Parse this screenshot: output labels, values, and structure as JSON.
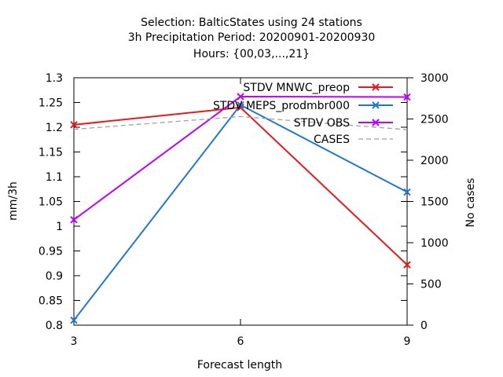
{
  "chart_data": {
    "type": "line",
    "title_lines": [
      "Selection: BalticStates using     24 stations",
      "3h Precipitation    Period: 20200901-20200930",
      "Hours: {00,03,...,21}"
    ],
    "xlabel": "Forecast length",
    "ylabel": "mm/3h",
    "y2label": "No cases",
    "x": [
      3,
      6,
      9
    ],
    "x_ticks": [
      "3",
      "6",
      "9"
    ],
    "xlim": [
      3,
      9
    ],
    "ylim": [
      0.8,
      1.3
    ],
    "y_ticks": [
      "0.8",
      "0.85",
      "0.9",
      "0.95",
      "1",
      "1.05",
      "1.1",
      "1.15",
      "1.2",
      "1.25",
      "1.3"
    ],
    "y2lim": [
      0,
      3000
    ],
    "y2_ticks": [
      "0",
      "500",
      "1000",
      "1500",
      "2000",
      "2500",
      "3000"
    ],
    "grid": false,
    "legend_position": "top-right",
    "series": [
      {
        "name": "STDV MNWC_preop",
        "color": "#e41a1c",
        "marker": "x",
        "axis": "y",
        "values": [
          1.205,
          1.24,
          0.922
        ]
      },
      {
        "name": "STDV MEPS_prodmbr000",
        "color": "#1f77d4",
        "marker": "x",
        "axis": "y",
        "values": [
          0.81,
          1.245,
          1.069
        ]
      },
      {
        "name": "STDV OBS",
        "color": "#bf00ff",
        "marker": "x",
        "axis": "y",
        "values": [
          1.013,
          1.262,
          1.261
        ]
      },
      {
        "name": "CASES",
        "color": "#a0a0a0",
        "marker": "none",
        "axis": "y2",
        "dashed": true,
        "values": [
          2375,
          2530,
          2370
        ]
      }
    ]
  }
}
